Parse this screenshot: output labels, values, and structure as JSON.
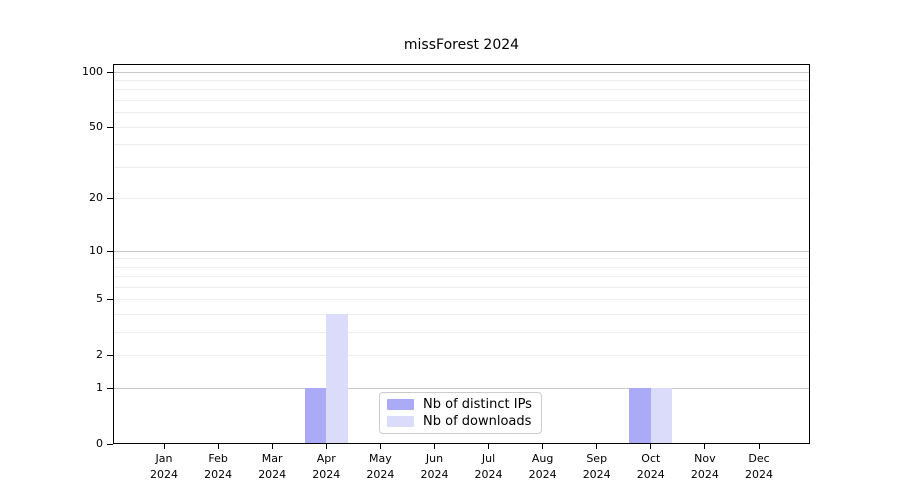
{
  "title": "missForest 2024",
  "colors": {
    "distinct_ips": "#aaaaf7",
    "downloads": "#dbdbfa",
    "grid_major": "#c9c9c9",
    "grid_minor": "#ededed",
    "spine": "#000000",
    "background": "#ffffff"
  },
  "legend": {
    "items": [
      {
        "label": "Nb of distinct IPs",
        "swatch_color": "#aaaaf7"
      },
      {
        "label": "Nb of downloads",
        "swatch_color": "#dbdbfa"
      }
    ]
  },
  "chart_data": {
    "type": "bar",
    "title": "missForest 2024",
    "categories": [
      "Jan",
      "Feb",
      "Mar",
      "Apr",
      "May",
      "Jun",
      "Jul",
      "Aug",
      "Sep",
      "Oct",
      "Nov",
      "Dec"
    ],
    "x_year": "2024",
    "series": [
      {
        "name": "Nb of distinct IPs",
        "color": "#aaaaf7",
        "values": [
          0,
          0,
          0,
          1,
          0,
          0,
          0,
          0,
          0,
          1,
          0,
          0
        ]
      },
      {
        "name": "Nb of downloads",
        "color": "#dbdbfa",
        "values": [
          0,
          0,
          0,
          4,
          0,
          0,
          0,
          0,
          0,
          1,
          0,
          0
        ]
      }
    ],
    "xlabel": "",
    "ylabel": "",
    "y_scale": "log1p",
    "ylim": [
      0,
      110
    ],
    "y_ticks": [
      0,
      1,
      2,
      5,
      10,
      20,
      50,
      100
    ],
    "y_major_gridlines": [
      1,
      10,
      100
    ],
    "y_minor_gridlines": [
      2,
      3,
      4,
      5,
      6,
      7,
      8,
      9,
      20,
      30,
      40,
      50,
      60,
      70,
      80,
      90
    ],
    "grid": "on",
    "legend_position": "lower center inside"
  }
}
